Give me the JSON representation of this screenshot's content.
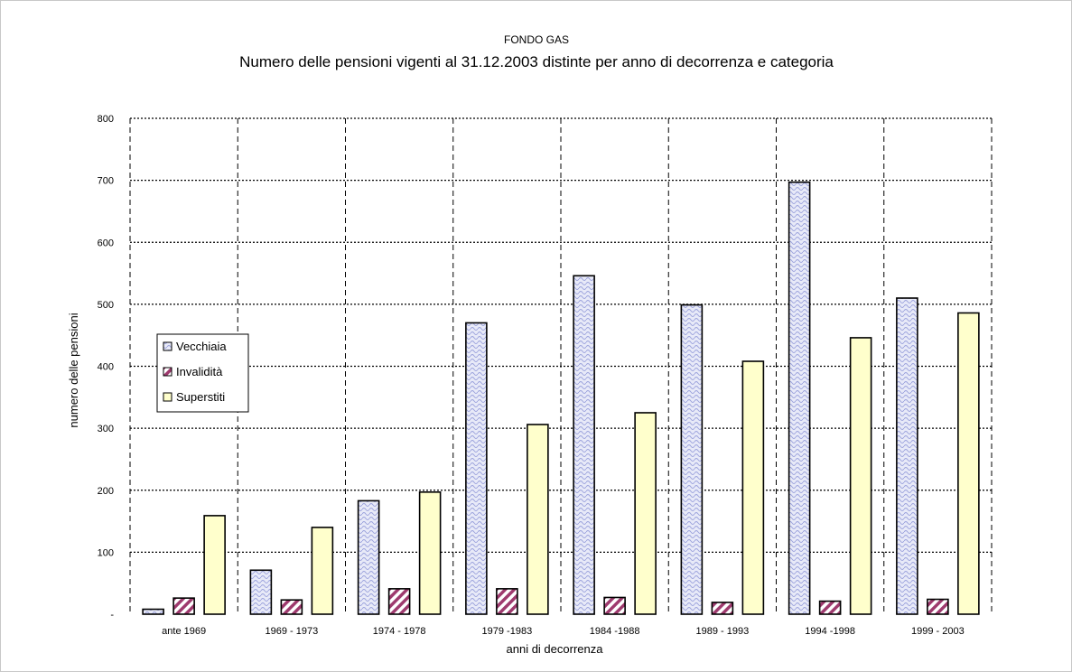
{
  "chart_data": {
    "type": "bar",
    "supertitle": "FONDO GAS",
    "title": "Numero delle pensioni vigenti al 31.12.2003 distinte per anno di decorrenza e categoria",
    "xlabel": "anni di decorrenza",
    "ylabel": "numero delle pensioni",
    "ylim": [
      0,
      800
    ],
    "yticks": [
      "-",
      "100",
      "200",
      "300",
      "400",
      "500",
      "600",
      "700",
      "800"
    ],
    "categories": [
      "ante 1969",
      "1969 - 1973",
      "1974 - 1978",
      "1979 -1983",
      "1984 -1988",
      "1989 - 1993",
      "1994 -1998",
      "1999 - 2003"
    ],
    "series": [
      {
        "name": "Vecchiaia",
        "values": [
          8,
          71,
          183,
          470,
          546,
          499,
          697,
          510
        ]
      },
      {
        "name": "Invalidità",
        "values": [
          26,
          23,
          41,
          41,
          27,
          19,
          21,
          24
        ]
      },
      {
        "name": "Superstiti",
        "values": [
          159,
          140,
          197,
          306,
          325,
          408,
          446,
          486
        ]
      }
    ],
    "grid": true,
    "legend": "left",
    "colors": {
      "vecchiaia": "#d6d9f3",
      "vecchiaia_pattern": "#9aa1dc",
      "invalidita": "#9e3a6e",
      "superstiti": "#ffffcc"
    }
  }
}
